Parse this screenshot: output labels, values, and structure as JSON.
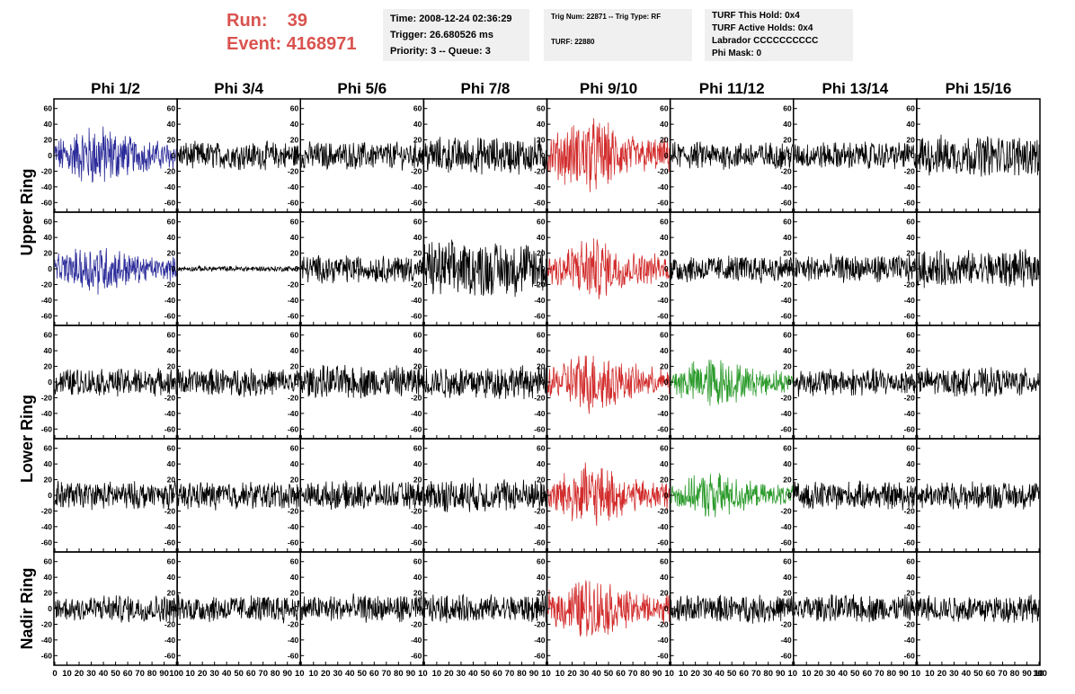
{
  "header": {
    "run_label": "Run:",
    "run_value": "39",
    "event_label": "Event:",
    "event_value": "4168971",
    "info_left": [
      "Time: 2008-12-24 02:36:29",
      "Trigger: 26.680526 ms",
      "Priority: 3 -- Queue: 3"
    ],
    "info_mid": [
      "Trig Num: 22871 -- Trig Type: RF",
      "TURF: 22880"
    ],
    "info_right": [
      "TURF This Hold: 0x4",
      "TURF Active Holds: 0x4",
      "Labrador CCCCCCCCCC",
      "Phi Mask: 0"
    ]
  },
  "colors": {
    "normal": "#000000",
    "blue": "#2b2b9a",
    "red": "#d22b2b",
    "green": "#2a9a2a"
  },
  "chart_data": {
    "type": "line",
    "columns": [
      "Phi 1/2",
      "Phi 3/4",
      "Phi 5/6",
      "Phi 7/8",
      "Phi 9/10",
      "Phi 11/12",
      "Phi 13/14",
      "Phi 15/16"
    ],
    "ring_labels": [
      {
        "label": "Upper Ring",
        "rows": [
          0,
          1
        ]
      },
      {
        "label": "Lower Ring",
        "rows": [
          2,
          3
        ]
      },
      {
        "label": "Nadir Ring",
        "rows": [
          4
        ]
      }
    ],
    "xlim": [
      0,
      100
    ],
    "x_ticks": [
      "0",
      "10",
      "20",
      "30",
      "40",
      "50",
      "60",
      "70",
      "80",
      "90",
      "100"
    ],
    "x_ticks_inner": [
      "10",
      "20",
      "30",
      "40",
      "50",
      "60",
      "70",
      "80",
      "90",
      "10"
    ],
    "ylim": [
      -70,
      70
    ],
    "y_ticks": [
      "60",
      "40",
      "20",
      "0",
      "-20",
      "-40",
      "-60"
    ],
    "panel_colors": [
      [
        "blue",
        "normal",
        "normal",
        "normal",
        "red",
        "normal",
        "normal",
        "normal"
      ],
      [
        "blue",
        "normal",
        "normal",
        "normal",
        "red",
        "normal",
        "normal",
        "normal"
      ],
      [
        "normal",
        "normal",
        "normal",
        "normal",
        "red",
        "green",
        "normal",
        "normal"
      ],
      [
        "normal",
        "normal",
        "normal",
        "normal",
        "red",
        "green",
        "normal",
        "normal"
      ],
      [
        "normal",
        "normal",
        "normal",
        "normal",
        "red",
        "normal",
        "normal",
        "normal"
      ]
    ],
    "panel_amplitudes": [
      [
        25,
        15,
        15,
        20,
        30,
        15,
        15,
        22
      ],
      [
        20,
        3,
        15,
        30,
        25,
        15,
        15,
        20
      ],
      [
        15,
        15,
        18,
        18,
        25,
        20,
        15,
        15
      ],
      [
        15,
        15,
        15,
        18,
        25,
        18,
        15,
        15
      ],
      [
        15,
        15,
        15,
        15,
        25,
        15,
        15,
        15
      ]
    ],
    "samples_per_trace": 260
  }
}
